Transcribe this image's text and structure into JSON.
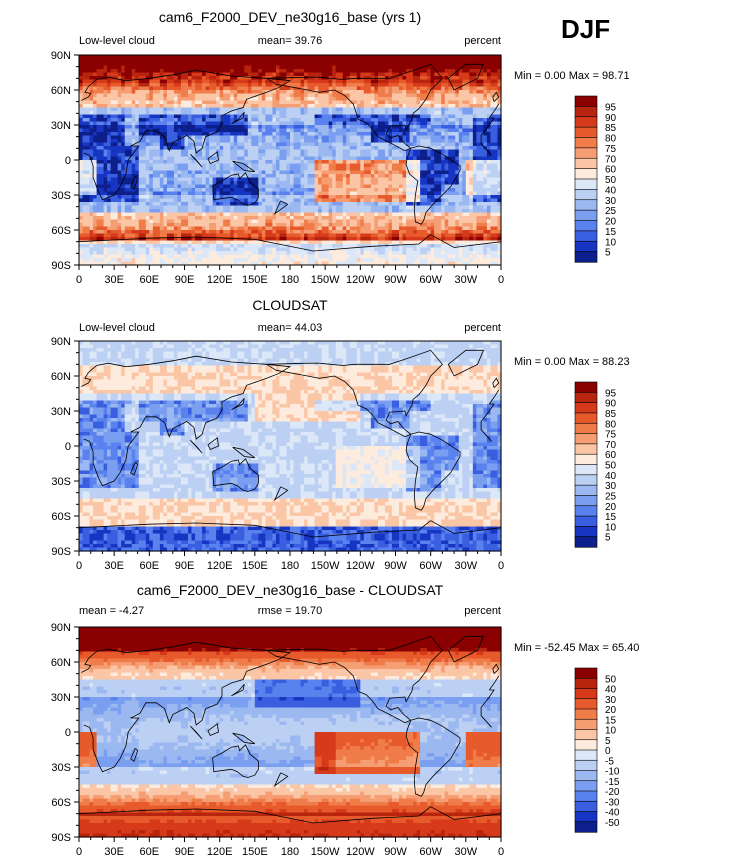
{
  "season": "DJF",
  "chart_data": [
    {
      "type": "heatmap",
      "title": "cam6_F2000_DEV_ne30g16_base (yrs 1)",
      "left_label": "Low-level cloud",
      "center_label": "mean=  39.76",
      "right_label": "percent",
      "min_max": "Min =    0.00 Max =   98.71",
      "field": "model",
      "lat_ticks": [
        "90N",
        "60N",
        "30N",
        "0",
        "30S",
        "60S",
        "90S"
      ],
      "lon_ticks": [
        "0",
        "30E",
        "60E",
        "90E",
        "120E",
        "150E",
        "180",
        "150W",
        "120W",
        "90W",
        "60W",
        "30W",
        "0"
      ],
      "legend_levels": [
        "95",
        "90",
        "85",
        "80",
        "75",
        "70",
        "60",
        "50",
        "40",
        "30",
        "25",
        "20",
        "15",
        "10",
        "5"
      ],
      "legend_colors": [
        "#8b0000",
        "#b8250f",
        "#d63a1a",
        "#e75a2b",
        "#f07c4a",
        "#f59e74",
        "#fbc6a6",
        "#fdebdd",
        "#dce7f7",
        "#bcd0f3",
        "#9bb8f0",
        "#7b9ff0",
        "#5a82ee",
        "#3a5ee0",
        "#1635c2",
        "#0c1f8a"
      ]
    },
    {
      "type": "heatmap",
      "title": "CLOUDSAT",
      "left_label": "Low-level cloud",
      "center_label": "mean=  44.03",
      "right_label": "percent",
      "min_max": "Min =    0.00 Max =   88.23",
      "field": "obs",
      "lat_ticks": [
        "90N",
        "60N",
        "30N",
        "0",
        "30S",
        "60S",
        "90S"
      ],
      "lon_ticks": [
        "0",
        "30E",
        "60E",
        "90E",
        "120E",
        "150E",
        "180",
        "150W",
        "120W",
        "90W",
        "60W",
        "30W",
        "0"
      ],
      "legend_levels": [
        "95",
        "90",
        "85",
        "80",
        "75",
        "70",
        "60",
        "50",
        "40",
        "30",
        "25",
        "20",
        "15",
        "10",
        "5"
      ],
      "legend_colors": [
        "#8b0000",
        "#b8250f",
        "#d63a1a",
        "#e75a2b",
        "#f07c4a",
        "#f59e74",
        "#fbc6a6",
        "#fdebdd",
        "#dce7f7",
        "#bcd0f3",
        "#9bb8f0",
        "#7b9ff0",
        "#5a82ee",
        "#3a5ee0",
        "#1635c2",
        "#0c1f8a"
      ]
    },
    {
      "type": "heatmap",
      "title": "cam6_F2000_DEV_ne30g16_base - CLOUDSAT",
      "left_label": "mean =   -4.27",
      "center_label": "rmse =   19.70",
      "right_label": "percent",
      "min_max": "Min = -52.45 Max =   65.40",
      "field": "diff",
      "lat_ticks": [
        "90N",
        "60N",
        "30N",
        "0",
        "30S",
        "60S",
        "90S"
      ],
      "lon_ticks": [
        "0",
        "30E",
        "60E",
        "90E",
        "120E",
        "150E",
        "180",
        "150W",
        "120W",
        "90W",
        "60W",
        "30W",
        "0"
      ],
      "legend_levels": [
        "50",
        "40",
        "30",
        "20",
        "15",
        "10",
        "5",
        "0",
        "-5",
        "-10",
        "-15",
        "-20",
        "-30",
        "-40",
        "-50"
      ],
      "legend_colors": [
        "#8b0000",
        "#b8250f",
        "#d63a1a",
        "#e75a2b",
        "#f07c4a",
        "#f59e74",
        "#fbc6a6",
        "#fdebdd",
        "#dce7f7",
        "#bcd0f3",
        "#9bb8f0",
        "#7b9ff0",
        "#5a82ee",
        "#3a5ee0",
        "#1635c2",
        "#0c1f8a"
      ]
    }
  ]
}
